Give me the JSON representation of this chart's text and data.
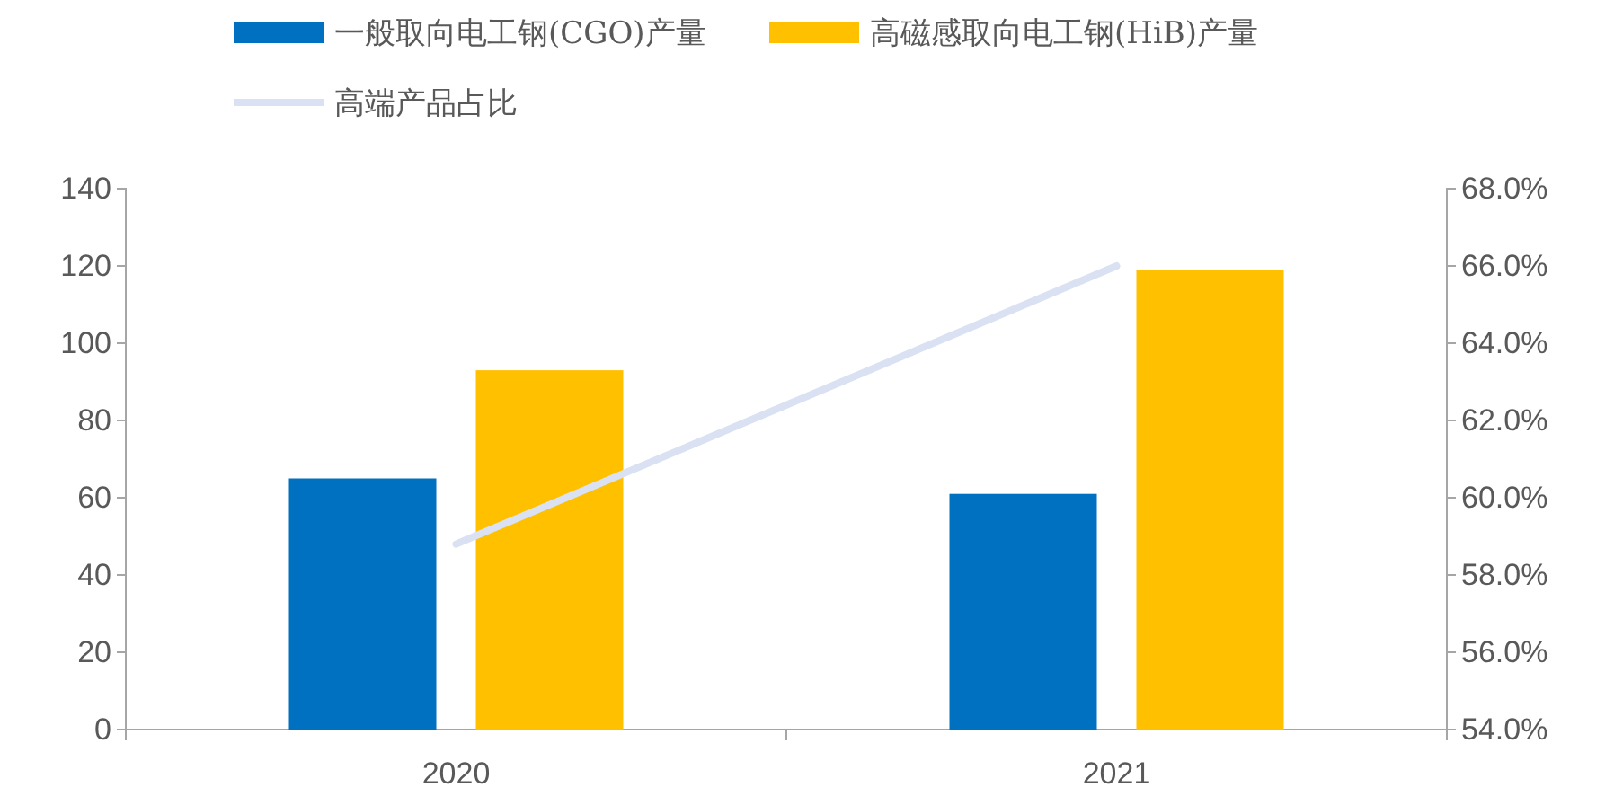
{
  "chart_data": {
    "type": "bar",
    "categories": [
      "2020",
      "2021"
    ],
    "series": [
      {
        "name": "一般取向电工钢(CGO)产量",
        "color": "#0070c0",
        "values": [
          65,
          61
        ]
      },
      {
        "name": "高磁感取向电工钢(HiB)产量",
        "color": "#ffc000",
        "values": [
          93,
          119
        ]
      },
      {
        "name": "高端产品占比",
        "type": "line",
        "axis": "y2",
        "color": "#d9e1f2",
        "values": [
          58.8,
          66.0
        ]
      }
    ],
    "ylim": [
      0,
      140
    ],
    "yticks": [
      0,
      20,
      40,
      60,
      80,
      100,
      120,
      140
    ],
    "y2lim": [
      54,
      68
    ],
    "y2ticks": [
      {
        "value": 54,
        "label": "54.0%"
      },
      {
        "value": 56,
        "label": "56.0%"
      },
      {
        "value": 58,
        "label": "58.0%"
      },
      {
        "value": 60,
        "label": "60.0%"
      },
      {
        "value": 62,
        "label": "62.0%"
      },
      {
        "value": 64,
        "label": "64.0%"
      },
      {
        "value": 66,
        "label": "66.0%"
      },
      {
        "value": 68,
        "label": "68.0%"
      }
    ],
    "legend": "top",
    "grid": false
  }
}
